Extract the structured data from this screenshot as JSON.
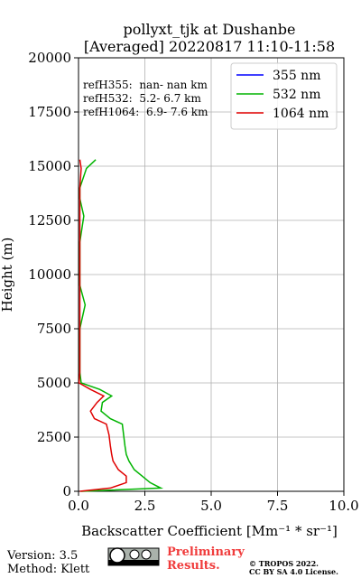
{
  "chart_data": {
    "type": "profile",
    "title": [
      "pollyxt_tjk at Dushanbe",
      "[Averaged] 20220817 11:10-11:58"
    ],
    "xlabel": "Backscatter Coefficient [Mm⁻¹ * sr⁻¹]",
    "ylabel": "Height (m)",
    "annotations": [
      "refH355:  nan- nan km",
      "refH532:  5.2- 6.7 km",
      "refH1064:  6.9- 7.6 km"
    ],
    "heights": [
      0,
      150,
      400,
      700,
      1000,
      1400,
      1700,
      2100,
      2600,
      3100,
      3350,
      3700,
      4100,
      4400,
      4700,
      5000,
      5500,
      6500,
      7500,
      8600,
      9500,
      10500,
      11500,
      12700,
      13500,
      14000,
      14900,
      15300
    ],
    "series": [
      {
        "name": "355 nm",
        "color": "#0000ff",
        "values": [
          null,
          null,
          null,
          null,
          null,
          null,
          null,
          null,
          null,
          null,
          null,
          null,
          null,
          null,
          null,
          null,
          null,
          null,
          null,
          null,
          null,
          null,
          null,
          null,
          null,
          null,
          null,
          null
        ]
      },
      {
        "name": "532 nm",
        "color": "#00b400",
        "values": [
          0.1,
          3.1,
          2.7,
          2.4,
          2.1,
          1.9,
          1.8,
          1.75,
          1.7,
          1.65,
          1.2,
          0.85,
          0.9,
          1.25,
          0.8,
          0.1,
          0.05,
          0.05,
          0.05,
          0.25,
          0.05,
          0.05,
          0.05,
          0.2,
          0.05,
          0.05,
          0.3,
          0.65
        ]
      },
      {
        "name": "1064 nm",
        "color": "#e00000",
        "values": [
          0.05,
          1.2,
          1.8,
          1.8,
          1.5,
          1.3,
          1.25,
          1.2,
          1.15,
          1.05,
          0.6,
          0.45,
          0.7,
          0.95,
          0.45,
          0.02,
          0.05,
          0.05,
          0.05,
          0.05,
          0.05,
          0.05,
          0.05,
          0.05,
          0.05,
          0.05,
          0.1,
          0.05
        ]
      }
    ],
    "xlim": [
      0,
      10
    ],
    "xticks": [
      {
        "value": 0,
        "label": "0.0"
      },
      {
        "value": 2.5,
        "label": "2.5"
      },
      {
        "value": 5,
        "label": "5.0"
      },
      {
        "value": 7.5,
        "label": "7.5"
      },
      {
        "value": 10,
        "label": "10.0"
      }
    ],
    "ylim": [
      0,
      20000
    ],
    "yticks": [
      0,
      2500,
      5000,
      7500,
      10000,
      12500,
      15000,
      17500,
      20000
    ],
    "grid": true,
    "legend": "upper right"
  },
  "footer": {
    "version": "Version: 3.5",
    "method": "Method: Klett",
    "preliminary": [
      "Preliminary",
      "Results."
    ],
    "copyright": [
      "© TROPOS 2022.",
      "CC BY SA 4.0 License."
    ]
  }
}
